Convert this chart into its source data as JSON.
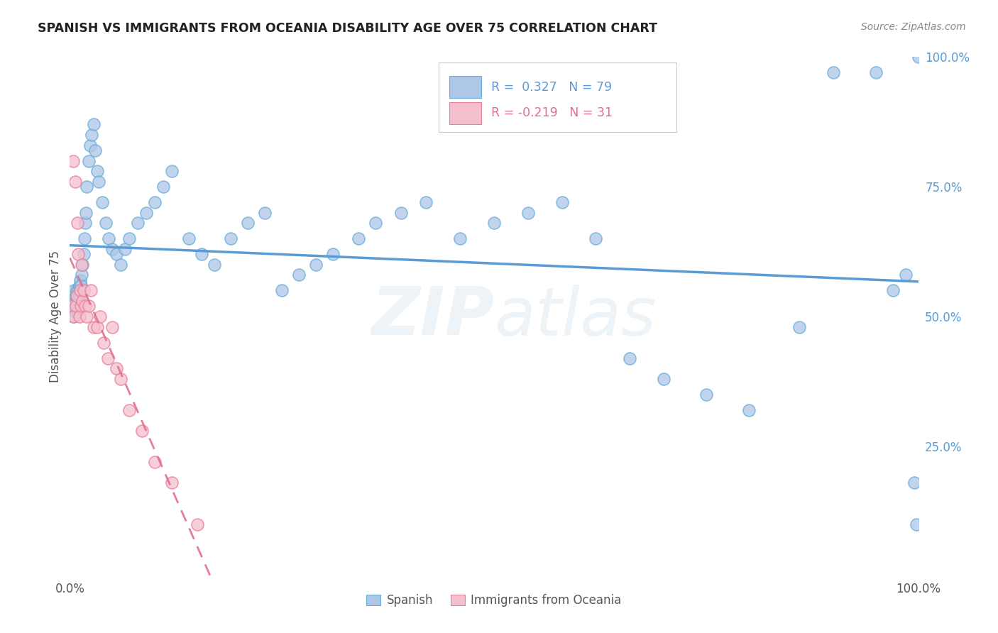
{
  "title": "SPANISH VS IMMIGRANTS FROM OCEANIA DISABILITY AGE OVER 75 CORRELATION CHART",
  "source": "Source: ZipAtlas.com",
  "ylabel": "Disability Age Over 75",
  "background_color": "#ffffff",
  "grid_color": "#e0e0e0",
  "watermark": "ZIPatlas",
  "blue_R": 0.327,
  "blue_N": 79,
  "pink_R": -0.219,
  "pink_N": 31,
  "blue_color": "#aec6e8",
  "pink_color": "#f5c0ce",
  "blue_edge_color": "#6aaed6",
  "pink_edge_color": "#e8809a",
  "blue_line_color": "#5b9bd5",
  "pink_line_color": "#e07090",
  "legend_label_blue": "Spanish",
  "legend_label_pink": "Immigrants from Oceania",
  "blue_x": [
    0.002,
    0.003,
    0.004,
    0.004,
    0.005,
    0.005,
    0.006,
    0.006,
    0.007,
    0.007,
    0.008,
    0.008,
    0.009,
    0.009,
    0.01,
    0.01,
    0.011,
    0.011,
    0.012,
    0.012,
    0.013,
    0.014,
    0.015,
    0.016,
    0.017,
    0.018,
    0.019,
    0.02,
    0.022,
    0.024,
    0.026,
    0.028,
    0.03,
    0.032,
    0.034,
    0.038,
    0.042,
    0.046,
    0.05,
    0.055,
    0.06,
    0.065,
    0.07,
    0.08,
    0.09,
    0.1,
    0.11,
    0.12,
    0.14,
    0.155,
    0.17,
    0.19,
    0.21,
    0.23,
    0.25,
    0.27,
    0.29,
    0.31,
    0.34,
    0.36,
    0.39,
    0.42,
    0.46,
    0.5,
    0.54,
    0.58,
    0.62,
    0.66,
    0.7,
    0.75,
    0.8,
    0.86,
    0.9,
    0.95,
    0.97,
    0.985,
    0.995,
    0.998,
    1.0
  ],
  "blue_y": [
    0.52,
    0.53,
    0.5,
    0.54,
    0.52,
    0.55,
    0.51,
    0.53,
    0.54,
    0.52,
    0.55,
    0.53,
    0.51,
    0.54,
    0.53,
    0.55,
    0.54,
    0.56,
    0.55,
    0.57,
    0.56,
    0.58,
    0.6,
    0.62,
    0.65,
    0.68,
    0.7,
    0.75,
    0.8,
    0.83,
    0.85,
    0.87,
    0.82,
    0.78,
    0.76,
    0.72,
    0.68,
    0.65,
    0.63,
    0.62,
    0.6,
    0.63,
    0.65,
    0.68,
    0.7,
    0.72,
    0.75,
    0.78,
    0.65,
    0.62,
    0.6,
    0.65,
    0.68,
    0.7,
    0.55,
    0.58,
    0.6,
    0.62,
    0.65,
    0.68,
    0.7,
    0.72,
    0.65,
    0.68,
    0.7,
    0.72,
    0.65,
    0.42,
    0.38,
    0.35,
    0.32,
    0.48,
    0.97,
    0.97,
    0.55,
    0.58,
    0.18,
    0.1,
    1.0
  ],
  "pink_x": [
    0.003,
    0.004,
    0.005,
    0.006,
    0.007,
    0.008,
    0.009,
    0.01,
    0.011,
    0.012,
    0.013,
    0.014,
    0.015,
    0.016,
    0.018,
    0.02,
    0.022,
    0.025,
    0.028,
    0.032,
    0.036,
    0.04,
    0.045,
    0.05,
    0.055,
    0.06,
    0.07,
    0.085,
    0.1,
    0.12,
    0.15
  ],
  "pink_y": [
    0.52,
    0.8,
    0.5,
    0.76,
    0.52,
    0.54,
    0.68,
    0.62,
    0.5,
    0.55,
    0.52,
    0.6,
    0.53,
    0.55,
    0.52,
    0.5,
    0.52,
    0.55,
    0.48,
    0.48,
    0.5,
    0.45,
    0.42,
    0.48,
    0.4,
    0.38,
    0.32,
    0.28,
    0.22,
    0.18,
    0.1
  ]
}
